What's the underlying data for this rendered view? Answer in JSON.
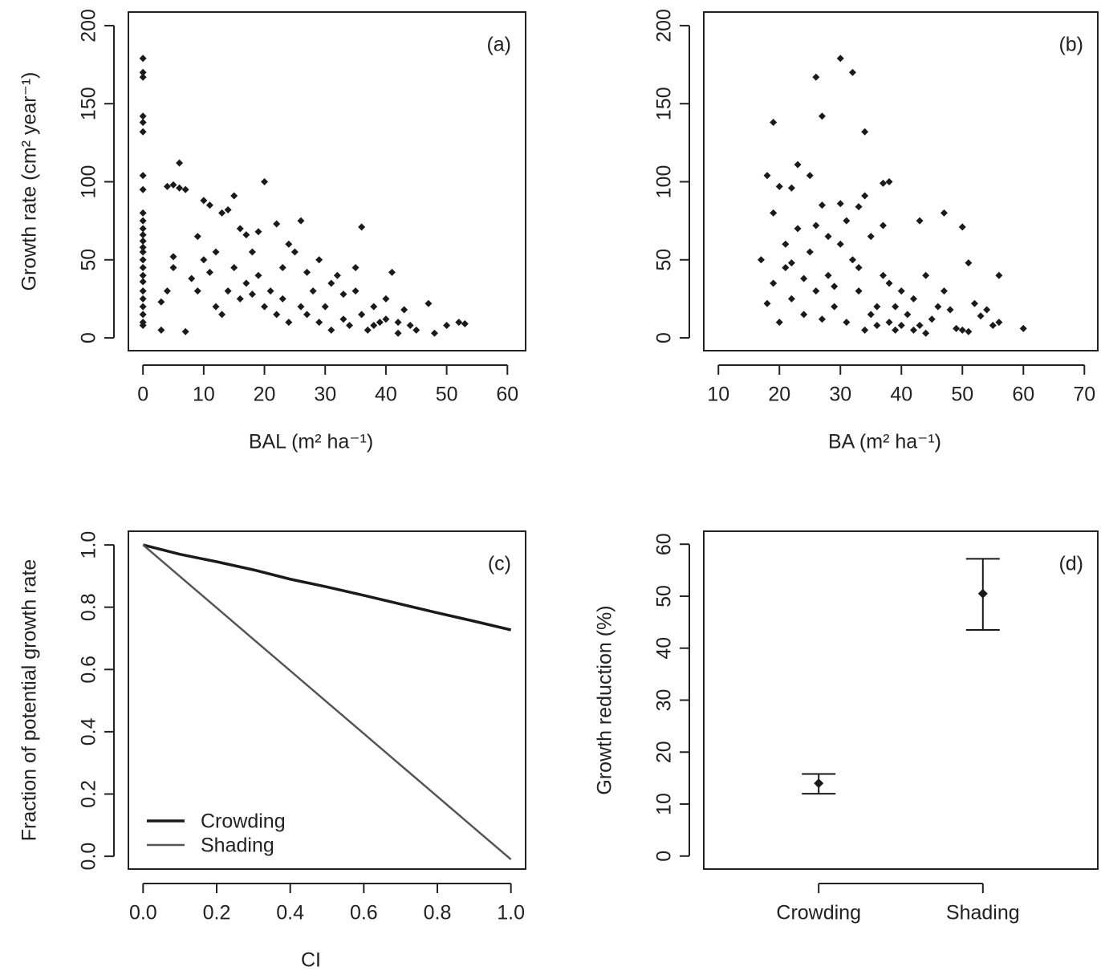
{
  "chart_data": [
    {
      "type": "scatter",
      "panel_label": "(a)",
      "x_label": "BAL  (m² ha⁻¹)",
      "y_label": "Growth rate  (cm² year⁻¹)",
      "color": "#1a1a1a",
      "x": [
        0,
        0,
        0,
        0,
        0,
        0,
        0,
        0,
        0,
        0,
        0,
        0,
        0,
        0,
        0,
        0,
        0,
        0,
        0,
        0,
        0,
        0,
        0,
        0,
        0,
        4,
        5,
        6,
        7,
        6,
        10,
        11,
        13,
        15,
        14,
        20,
        19,
        17,
        22,
        26,
        36,
        3,
        4,
        5,
        5,
        3,
        7,
        8,
        9,
        10,
        11,
        12,
        13,
        14,
        15,
        16,
        17,
        18,
        19,
        20,
        21,
        22,
        23,
        24,
        25,
        26,
        27,
        28,
        29,
        30,
        31,
        32,
        33,
        34,
        35,
        36,
        37,
        38,
        39,
        40,
        41,
        42,
        43,
        44,
        45,
        47,
        48,
        50,
        52,
        53,
        9,
        12,
        16,
        24,
        29,
        31,
        33,
        27,
        23,
        18,
        35,
        38,
        40,
        42
      ],
      "values": [
        179,
        170,
        167,
        142,
        138,
        132,
        104,
        95,
        80,
        75,
        70,
        66,
        62,
        58,
        55,
        50,
        45,
        40,
        36,
        30,
        25,
        20,
        15,
        10,
        8,
        97,
        98,
        96,
        95,
        112,
        88,
        85,
        80,
        91,
        82,
        100,
        68,
        66,
        73,
        75,
        71,
        23,
        30,
        45,
        52,
        5,
        4,
        38,
        30,
        50,
        42,
        20,
        15,
        30,
        45,
        25,
        35,
        55,
        40,
        20,
        30,
        15,
        45,
        10,
        55,
        20,
        15,
        30,
        10,
        20,
        5,
        40,
        12,
        8,
        30,
        15,
        5,
        20,
        10,
        12,
        42,
        3,
        18,
        8,
        5,
        22,
        3,
        8,
        10,
        9,
        65,
        55,
        70,
        60,
        50,
        35,
        28,
        42,
        25,
        28,
        45,
        8,
        25,
        10
      ],
      "xlim": [
        -2.4,
        63
      ],
      "ylim": [
        -8.2,
        208.7
      ],
      "xticks": [
        0,
        10,
        20,
        30,
        40,
        50,
        60
      ],
      "yticks": [
        0,
        50,
        100,
        150,
        200
      ]
    },
    {
      "type": "scatter",
      "panel_label": "(b)",
      "x_label": "BA  (m² ha⁻¹)",
      "color": "#1a1a1a",
      "x": [
        17,
        18,
        19,
        19,
        20,
        21,
        22,
        23,
        25,
        26,
        27,
        30,
        32,
        34,
        34,
        37,
        38,
        43,
        47,
        50,
        51,
        56,
        56,
        55,
        60,
        50,
        51,
        18,
        19,
        20,
        21,
        22,
        23,
        24,
        25,
        26,
        27,
        28,
        29,
        30,
        30,
        31,
        32,
        33,
        34,
        35,
        36,
        37,
        38,
        39,
        40,
        41,
        42,
        43,
        44,
        45,
        46,
        47,
        48,
        49,
        52,
        53,
        54,
        28,
        31,
        33,
        35,
        36,
        38,
        39,
        40,
        29,
        27,
        24,
        22,
        42,
        44,
        26,
        33,
        37
      ],
      "values": [
        50,
        104,
        138,
        80,
        97,
        60,
        96,
        111,
        104,
        167,
        142,
        179,
        170,
        132,
        91,
        99,
        100,
        75,
        80,
        71,
        48,
        40,
        10,
        8,
        6,
        5,
        4,
        22,
        35,
        10,
        45,
        25,
        70,
        15,
        55,
        30,
        85,
        40,
        20,
        86,
        60,
        10,
        50,
        30,
        5,
        65,
        20,
        40,
        10,
        5,
        30,
        15,
        25,
        8,
        40,
        12,
        20,
        30,
        18,
        6,
        22,
        14,
        18,
        65,
        75,
        45,
        15,
        8,
        35,
        20,
        8,
        33,
        12,
        38,
        48,
        5,
        3,
        72,
        84,
        72
      ],
      "xlim": [
        7.6,
        72.2
      ],
      "ylim": [
        -8.2,
        208.7
      ],
      "xticks": [
        10,
        20,
        30,
        40,
        50,
        60,
        70
      ],
      "yticks": [
        0,
        50,
        100,
        150,
        200
      ]
    },
    {
      "type": "line",
      "panel_label": "(c)",
      "x_label": "CI",
      "y_label": "Fraction of potential growth rate",
      "legend": "bottom-left",
      "x": [
        0,
        0.1,
        0.2,
        0.3,
        0.4,
        0.5,
        0.6,
        0.7,
        0.8,
        0.9,
        1
      ],
      "series": [
        {
          "name": "Crowding",
          "color": "#1a1a1a",
          "width": 3.5,
          "values": [
            1,
            0.97,
            0.946,
            0.92,
            0.89,
            0.865,
            0.838,
            0.81,
            0.782,
            0.755,
            0.727
          ]
        },
        {
          "name": "Shading",
          "color": "#555555",
          "width": 2.5,
          "values": [
            1,
            0.899,
            0.798,
            0.697,
            0.596,
            0.495,
            0.394,
            0.293,
            0.192,
            0.091,
            -0.01
          ]
        }
      ],
      "xlim": [
        -0.04,
        1.04
      ],
      "ylim": [
        -0.041,
        1.044
      ],
      "xticks": [
        {
          "value": 0,
          "label": "0.0"
        },
        0.2,
        0.4,
        0.6,
        0.8,
        {
          "value": 1,
          "label": "1.0"
        }
      ],
      "yticks": [
        {
          "value": 0,
          "label": "0.0"
        },
        0.2,
        0.4,
        0.6,
        0.8,
        {
          "value": 1,
          "label": "1.0"
        }
      ]
    },
    {
      "type": "errorbar",
      "panel_label": "(d)",
      "y_label": "Growth reduction (%)",
      "color": "#1a1a1a",
      "categories": [
        "Crowding",
        "Shading"
      ],
      "values": [
        14,
        50.5
      ],
      "lower": [
        12,
        43.5
      ],
      "upper": [
        15.8,
        57.2
      ],
      "ylim": [
        -2.5,
        62.5
      ],
      "yticks": [
        0,
        10,
        20,
        30,
        40,
        50,
        60
      ]
    }
  ]
}
